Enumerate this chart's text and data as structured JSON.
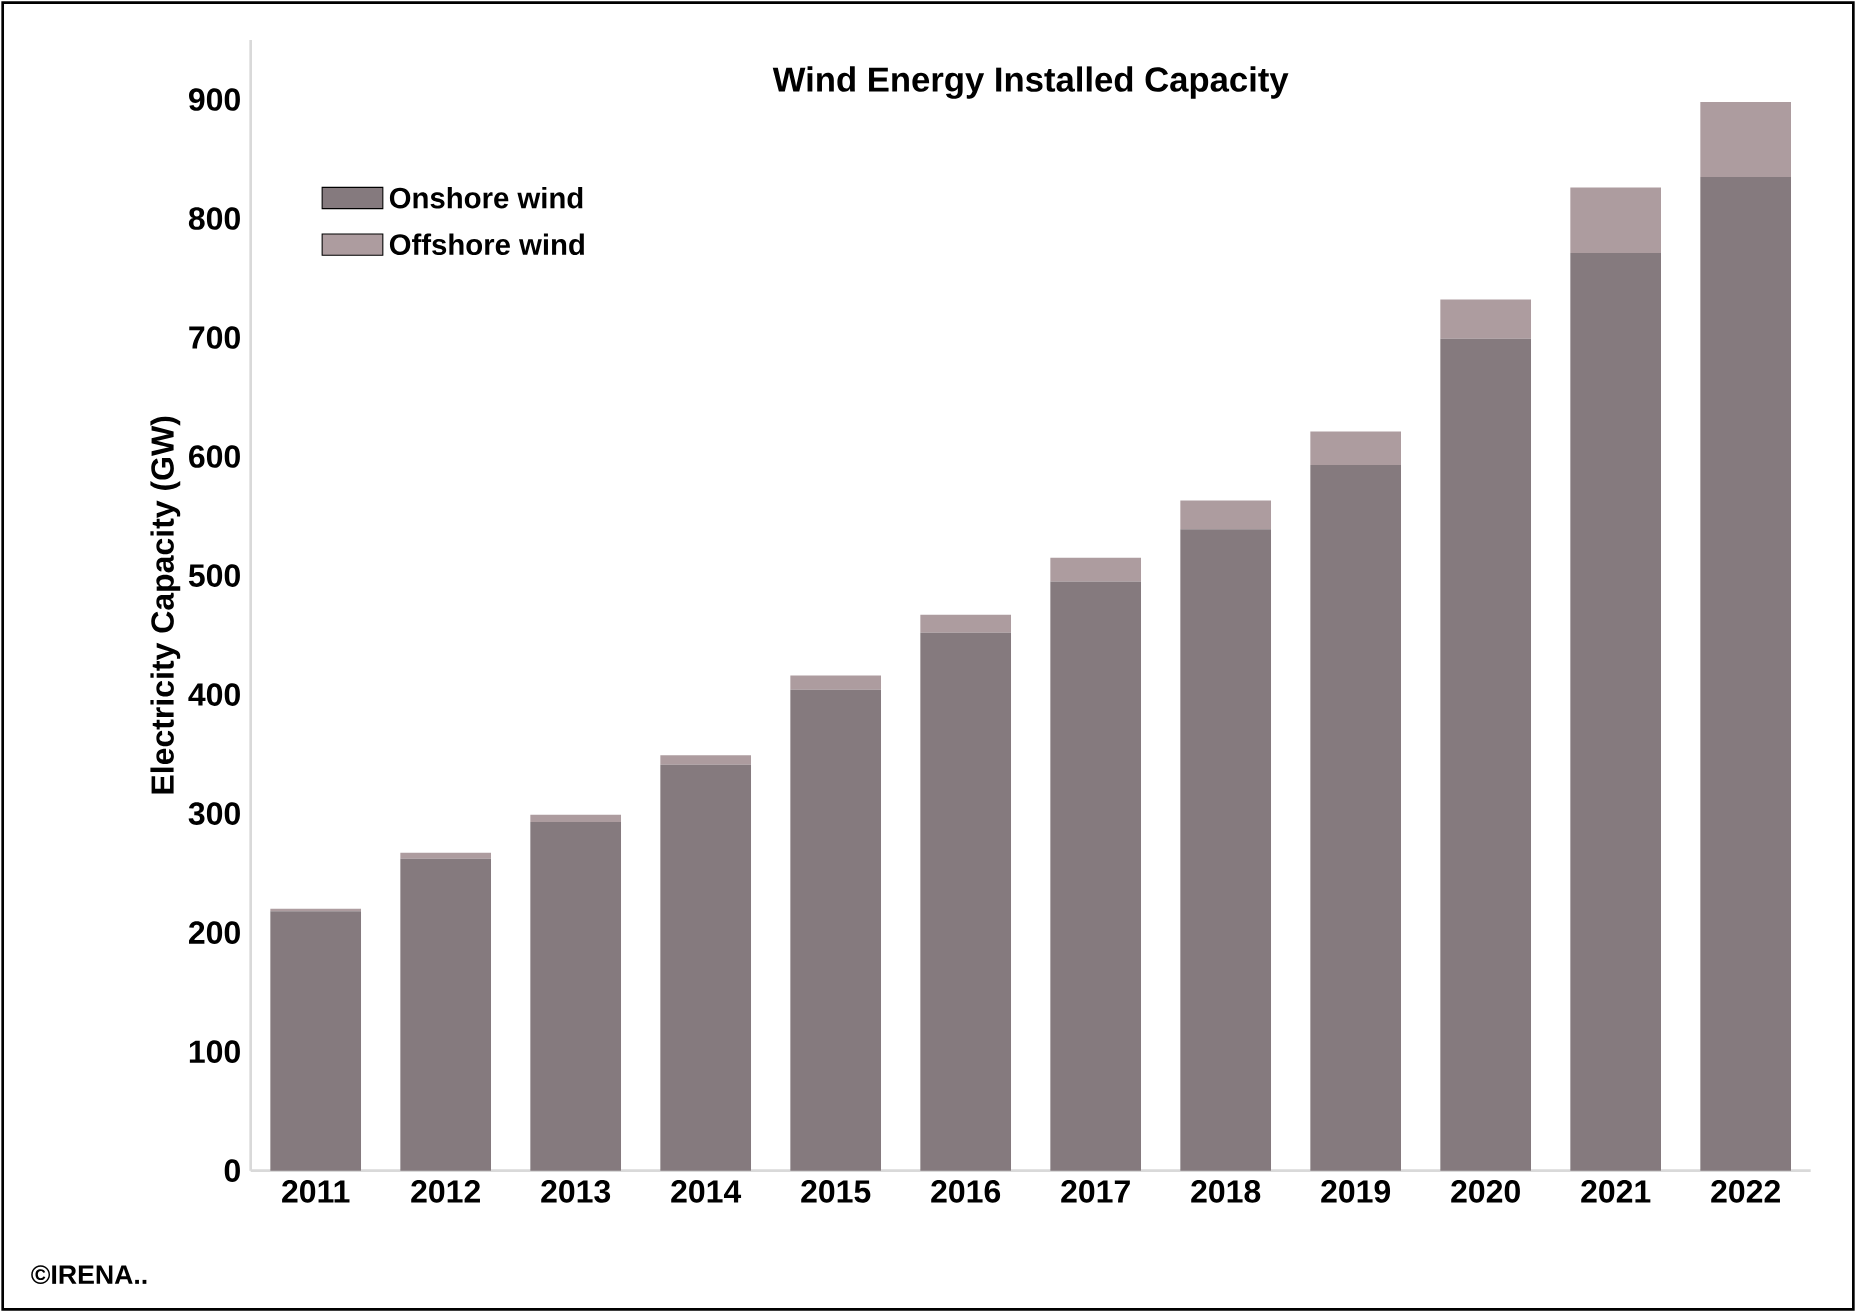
{
  "chart_data": {
    "type": "bar",
    "title": "Wind Energy Installed  Capacity",
    "ylabel": "Electricity Capacity (GW)",
    "categories": [
      "2011",
      "2012",
      "2013",
      "2014",
      "2015",
      "2016",
      "2017",
      "2018",
      "2019",
      "2020",
      "2021",
      "2022"
    ],
    "stacked": true,
    "series": [
      {
        "name": "Onshore wind",
        "color": "#857a7e",
        "values": [
          218,
          262,
          293,
          341,
          404,
          452,
          495,
          539,
          593,
          699,
          771,
          835
        ]
      },
      {
        "name": "Offshore wind",
        "color": "#ad9c9f",
        "values": [
          2,
          5,
          6,
          8,
          12,
          15,
          20,
          24,
          28,
          33,
          55,
          63
        ]
      }
    ],
    "ylim": [
      0,
      950
    ],
    "yticks": [
      0,
      100,
      200,
      300,
      400,
      500,
      600,
      700,
      800,
      900
    ],
    "grid": false,
    "legend": "top left",
    "annotations": [
      "©IRENA.."
    ]
  }
}
